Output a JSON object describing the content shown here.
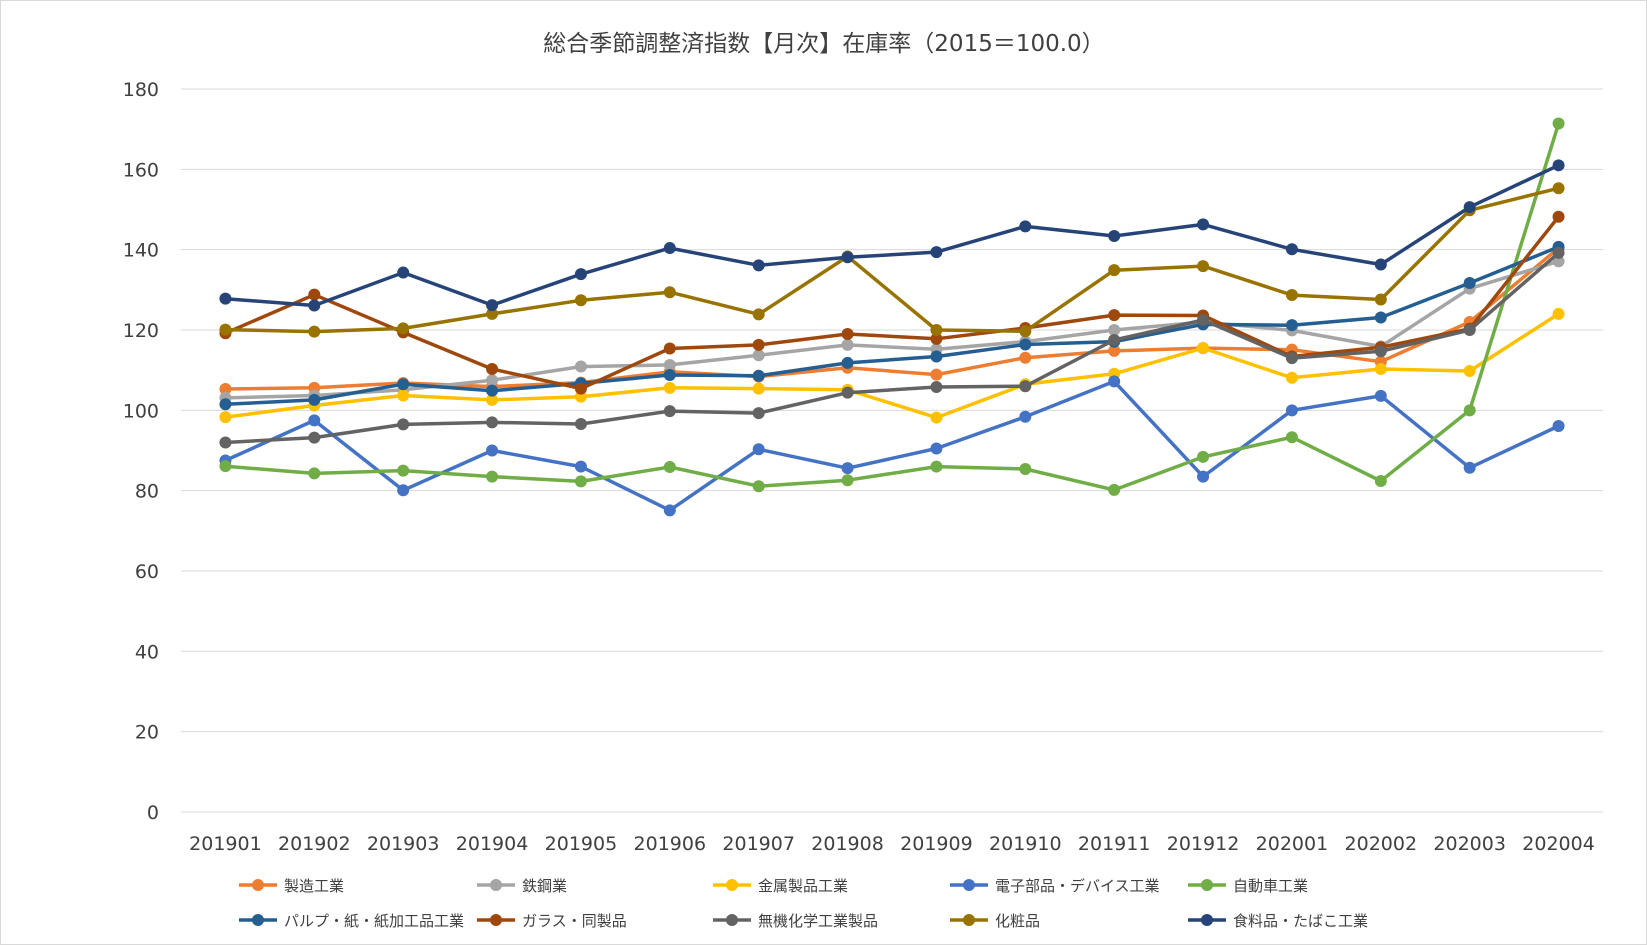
{
  "chart_data": {
    "type": "line",
    "title": "総合季節調整済指数【月次】在庫率（2015＝100.0）",
    "categories": [
      "201901",
      "201902",
      "201903",
      "201904",
      "201905",
      "201906",
      "201907",
      "201908",
      "201909",
      "201910",
      "201911",
      "201912",
      "202001",
      "202002",
      "202003",
      "202004"
    ],
    "ylim": [
      0,
      180
    ],
    "yticks": [
      0,
      20,
      40,
      60,
      80,
      100,
      120,
      140,
      160,
      180
    ],
    "grid": true,
    "legend_position": "bottom",
    "series": [
      {
        "name": "製造工業",
        "color": "#ED7D31",
        "values": [
          105.3,
          105.6,
          106.8,
          105.9,
          106.9,
          109.6,
          108.4,
          110.6,
          108.9,
          113.1,
          114.8,
          115.5,
          115.1,
          112.1,
          122.0,
          140.4
        ]
      },
      {
        "name": "鉄鋼業",
        "color": "#A5A5A5",
        "values": [
          103.1,
          103.7,
          105.1,
          107.5,
          110.9,
          111.3,
          113.7,
          116.3,
          115.2,
          117.1,
          120.0,
          122.0,
          119.9,
          115.9,
          130.3,
          137.1
        ]
      },
      {
        "name": "金属製品工業",
        "color": "#FFC000",
        "values": [
          98.3,
          101.2,
          103.7,
          102.6,
          103.4,
          105.6,
          105.4,
          105.1,
          98.2,
          106.5,
          109.1,
          115.5,
          108.1,
          110.3,
          109.8,
          124.0
        ]
      },
      {
        "name": "電子部品・デバイス工業",
        "color": "#4472C4",
        "values": [
          87.5,
          97.5,
          80.1,
          90.0,
          86.0,
          75.1,
          90.3,
          85.6,
          90.5,
          98.4,
          107.2,
          83.5,
          100.0,
          103.6,
          85.7,
          96.1
        ]
      },
      {
        "name": "自動車工業",
        "color": "#70AD47",
        "values": [
          86.1,
          84.3,
          85.0,
          83.5,
          82.3,
          85.9,
          81.1,
          82.6,
          86.0,
          85.4,
          80.2,
          88.4,
          93.3,
          82.4,
          100.0,
          171.4
        ]
      },
      {
        "name": "パルプ・紙・紙加工品工業",
        "color": "#255E91",
        "values": [
          101.5,
          102.6,
          106.5,
          104.9,
          106.7,
          108.8,
          108.6,
          111.8,
          113.4,
          116.4,
          117.1,
          121.4,
          121.2,
          123.1,
          131.7,
          140.7
        ]
      },
      {
        "name": "ガラス・同製品",
        "color": "#9E480E",
        "values": [
          119.2,
          128.8,
          119.4,
          110.3,
          105.4,
          115.4,
          116.3,
          119.0,
          117.8,
          120.5,
          123.7,
          123.6,
          113.4,
          115.7,
          120.3,
          148.2
        ]
      },
      {
        "name": "無機化学工業製品",
        "color": "#636363",
        "values": [
          92.0,
          93.2,
          96.5,
          97.0,
          96.6,
          99.8,
          99.3,
          104.4,
          105.8,
          106.0,
          117.5,
          122.5,
          113.0,
          114.7,
          120.0,
          139.2
        ]
      },
      {
        "name": "化粧品",
        "color": "#997300",
        "values": [
          120.1,
          119.6,
          120.4,
          124.0,
          127.4,
          129.4,
          123.9,
          138.3,
          120.0,
          119.7,
          134.9,
          135.9,
          128.7,
          127.6,
          149.8,
          155.3
        ]
      },
      {
        "name": "食料品・たばこ工業",
        "color": "#264478",
        "values": [
          127.8,
          126.1,
          134.3,
          126.2,
          133.9,
          140.4,
          136.1,
          138.1,
          139.4,
          145.8,
          143.4,
          146.3,
          140.1,
          136.3,
          150.6,
          161.0
        ]
      }
    ]
  }
}
